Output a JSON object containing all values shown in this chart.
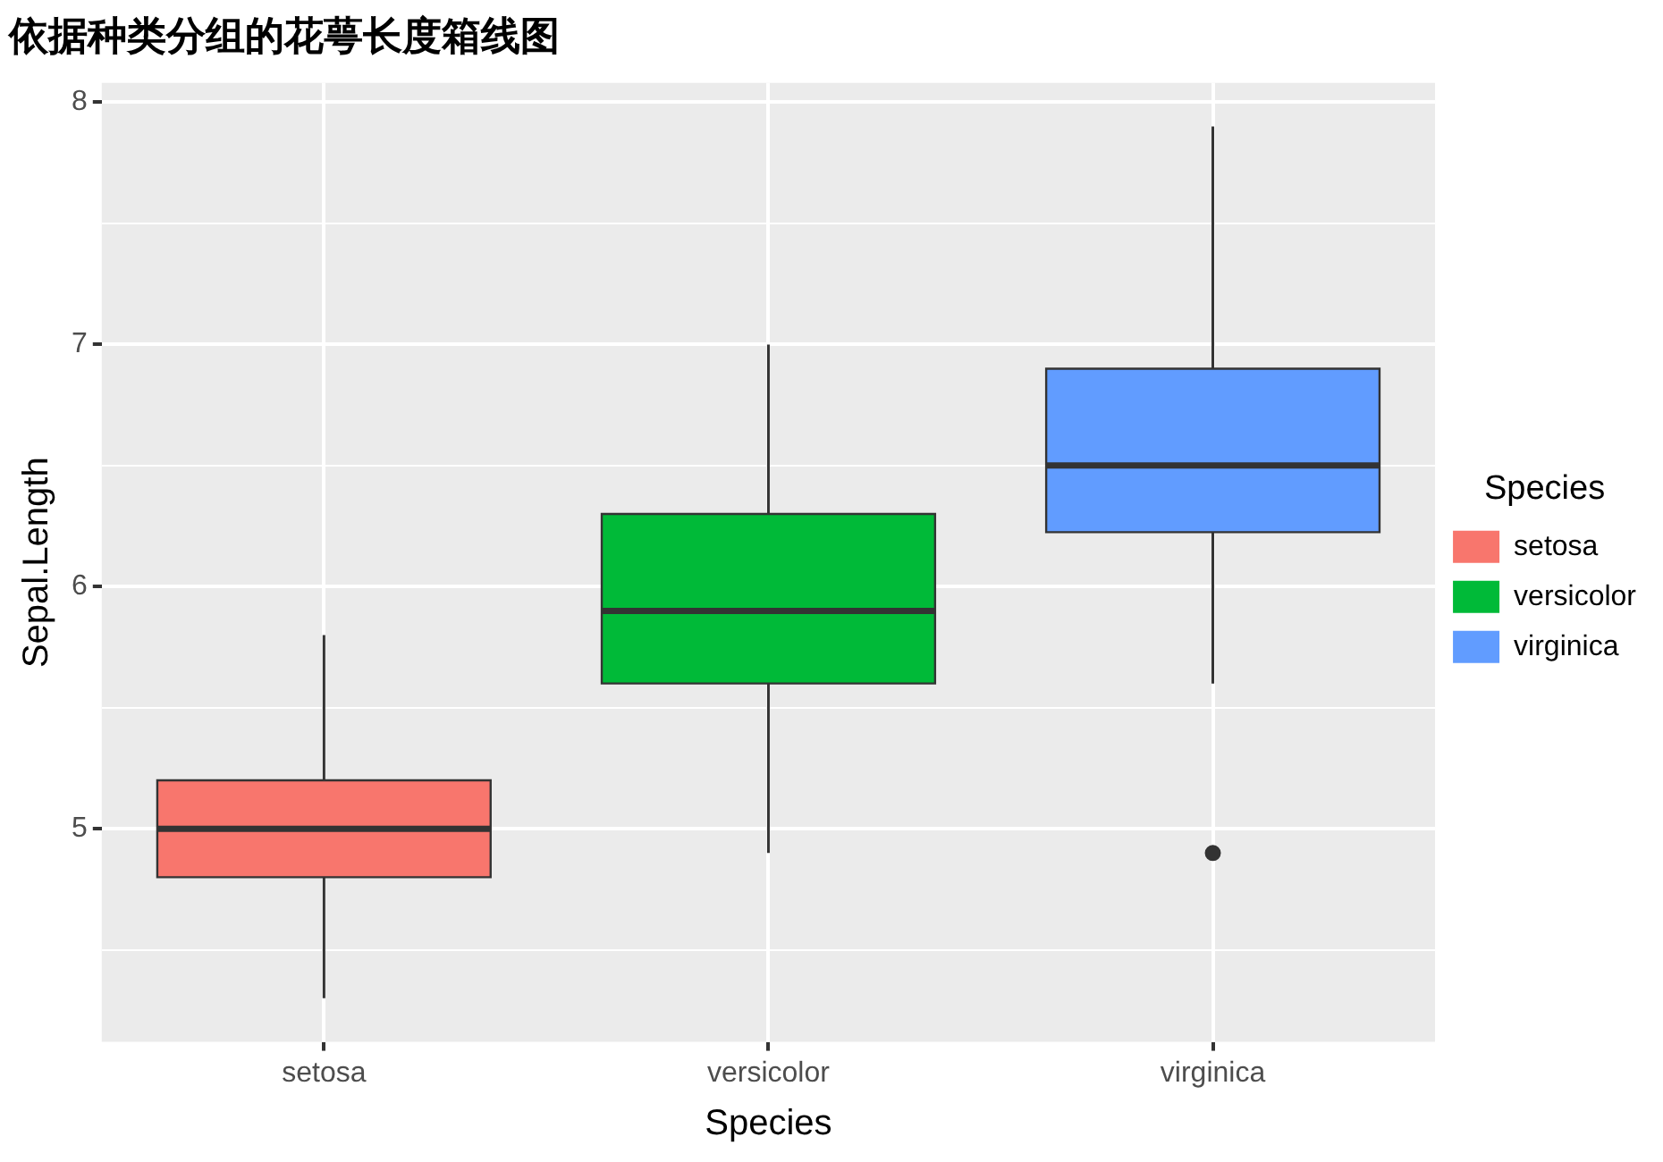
{
  "chart_data": {
    "type": "box",
    "title": "依据种类分组的花萼长度箱线图",
    "xlabel": "Species",
    "ylabel": "Sepal.Length",
    "legend_title": "Species",
    "categories": [
      "setosa",
      "versicolor",
      "virginica"
    ],
    "series": [
      {
        "name": "setosa",
        "color": "#f8766d",
        "boxes": [
          {
            "low": 4.3,
            "q1": 4.8,
            "median": 5.0,
            "q3": 5.2,
            "high": 5.8
          },
          null,
          null
        ]
      },
      {
        "name": "versicolor",
        "color": "#00ba38",
        "boxes": [
          null,
          {
            "low": 4.9,
            "q1": 5.6,
            "median": 5.9,
            "q3": 6.3,
            "high": 7.0
          },
          null
        ]
      },
      {
        "name": "virginica",
        "color": "#619cff",
        "boxes": [
          null,
          null,
          {
            "low": 5.6,
            "q1": 6.225,
            "median": 6.5,
            "q3": 6.9,
            "high": 7.9,
            "outliers": [
              4.9
            ]
          }
        ]
      }
    ],
    "ylim": [
      4.12,
      8.08
    ],
    "yticks": [
      {
        "value": 4.5,
        "label": null
      },
      5,
      {
        "value": 5.5,
        "label": null
      },
      6,
      {
        "value": 6.5,
        "label": null
      },
      7,
      {
        "value": 7.5,
        "label": null
      },
      8
    ],
    "grid": true,
    "legend": "right"
  }
}
